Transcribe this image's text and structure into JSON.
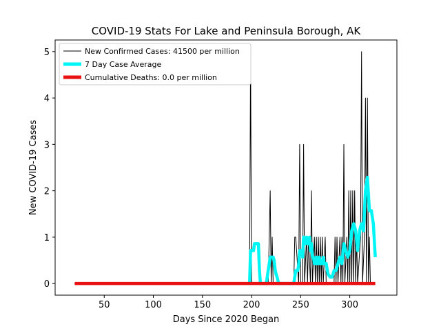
{
  "chart_data": {
    "type": "line",
    "title": "COVID-19 Stats For Lake and Peninsula Borough, AK",
    "xlabel": "Days Since 2020 Began",
    "ylabel": "New COVID-19 Cases",
    "xlim": [
      0,
      348
    ],
    "ylim": [
      -0.25,
      5.25
    ],
    "xticks": [
      50,
      100,
      150,
      200,
      250,
      300
    ],
    "yticks": [
      0,
      1,
      2,
      3,
      4,
      5
    ],
    "grid": false,
    "legend_position": "top-left",
    "series": [
      {
        "name": "New Confirmed Cases: 41500 per million",
        "color": "#000000",
        "style": "thin-line",
        "x": [
          20,
          198,
          199,
          200,
          201,
          217,
          218,
          219,
          220,
          221,
          222,
          243,
          244,
          245,
          248,
          249,
          250,
          252,
          253,
          254,
          256,
          257,
          258,
          260,
          261,
          262,
          264,
          265,
          266,
          267,
          268,
          269,
          270,
          271,
          272,
          273,
          275,
          276,
          277,
          284,
          285,
          286,
          287,
          288,
          290,
          291,
          292,
          293,
          294,
          295,
          297,
          298,
          299,
          300,
          301,
          302,
          303,
          304,
          305,
          306,
          307,
          308,
          311,
          312,
          313,
          315,
          316,
          317,
          318,
          319,
          320,
          321
        ],
        "y": [
          0,
          0,
          5,
          0,
          0,
          0,
          1,
          2,
          0,
          1,
          0,
          0,
          1,
          1,
          0,
          3,
          0,
          0,
          3,
          0,
          1,
          0,
          1,
          0,
          2,
          0,
          1,
          0,
          1,
          0,
          1,
          0,
          1,
          0,
          1,
          0,
          1,
          0,
          0,
          0,
          1,
          0,
          1,
          0,
          1,
          0,
          1,
          0,
          3,
          0,
          1,
          0,
          2,
          0,
          2,
          0,
          2,
          0,
          2,
          0,
          1,
          0,
          1,
          5,
          0,
          1,
          4,
          0,
          4,
          0,
          1,
          0
        ]
      },
      {
        "name": "7 Day Case Average",
        "color": "#00f5f5",
        "style": "thick-line",
        "x": [
          198,
          199,
          200,
          201,
          202,
          203,
          204,
          205,
          206,
          207,
          208,
          209,
          215,
          216,
          217,
          218,
          219,
          220,
          221,
          222,
          223,
          224,
          225,
          226,
          227,
          228,
          243,
          244,
          245,
          246,
          247,
          248,
          249,
          250,
          251,
          252,
          253,
          254,
          255,
          256,
          257,
          258,
          259,
          260,
          261,
          262,
          263,
          264,
          265,
          266,
          267,
          268,
          269,
          270,
          271,
          272,
          273,
          274,
          275,
          276,
          277,
          278,
          280,
          282,
          284,
          286,
          288,
          290,
          292,
          294,
          296,
          298,
          300,
          302,
          304,
          306,
          308,
          310,
          312,
          314,
          316,
          318,
          320,
          322,
          324,
          326
        ],
        "y": [
          0,
          0.71,
          0.71,
          0.71,
          0.71,
          0.86,
          0.86,
          0.86,
          0.86,
          0.86,
          0.3,
          0,
          0,
          0.14,
          0.29,
          0.43,
          0.57,
          0.57,
          0.57,
          0.57,
          0.5,
          0.3,
          0.2,
          0.14,
          0.05,
          0,
          0,
          0.14,
          0.28,
          0.28,
          0.28,
          0.4,
          0.71,
          0.71,
          0.71,
          0.57,
          1.0,
          0.86,
          0.86,
          1.0,
          0.86,
          0.86,
          1.0,
          0.71,
          0.86,
          0.57,
          0.57,
          0.43,
          0.43,
          0.57,
          0.43,
          0.43,
          0.57,
          0.43,
          0.43,
          0.43,
          0.57,
          0.43,
          0.43,
          0.43,
          0.3,
          0.2,
          0.14,
          0.14,
          0.28,
          0.28,
          0.43,
          0.57,
          0.43,
          0.86,
          0.71,
          0.57,
          0.71,
          1.14,
          1.29,
          1.14,
          0.71,
          1.14,
          1.29,
          1.14,
          2.0,
          2.29,
          1.57,
          1.57,
          1.29,
          0.57
        ]
      },
      {
        "name": "Cumulative Deaths: 0.0 per million",
        "color": "#e81010",
        "style": "thick-line",
        "x": [
          20,
          326
        ],
        "y": [
          0,
          0
        ]
      }
    ]
  }
}
